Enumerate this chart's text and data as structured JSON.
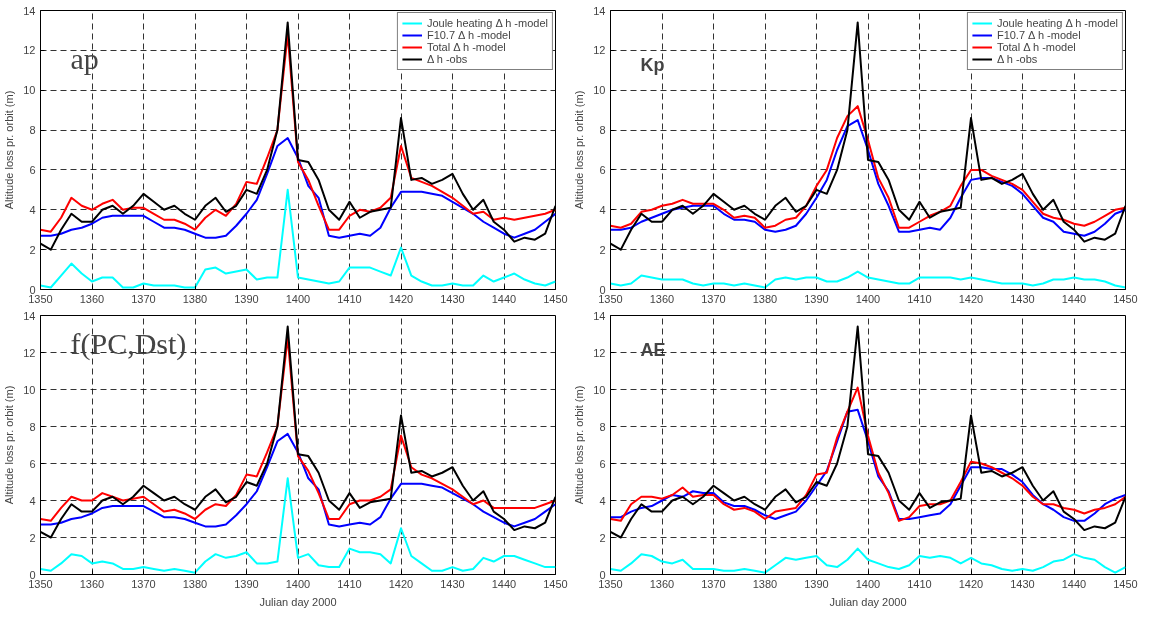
{
  "chart_data": [
    {
      "type": "line",
      "annotations": [
        "ap"
      ],
      "ylabel": "Altitude loss pr. orbit (m)",
      "xlim": [
        1350,
        1450
      ],
      "xticks": [
        1350,
        1360,
        1370,
        1380,
        1390,
        1400,
        1410,
        1420,
        1430,
        1440,
        1450
      ],
      "ylim": [
        0,
        14
      ],
      "yticks": [
        0,
        2,
        4,
        6,
        8,
        10,
        12,
        14
      ],
      "grid": true,
      "legend": "top right",
      "x": [
        1350,
        1352,
        1354,
        1356,
        1358,
        1360,
        1362,
        1364,
        1366,
        1368,
        1370,
        1372,
        1374,
        1376,
        1378,
        1380,
        1382,
        1384,
        1386,
        1388,
        1390,
        1392,
        1394,
        1396,
        1398,
        1400,
        1402,
        1404,
        1406,
        1408,
        1410,
        1412,
        1414,
        1416,
        1418,
        1420,
        1422,
        1424,
        1426,
        1428,
        1430,
        1432,
        1434,
        1436,
        1438,
        1440,
        1442,
        1444,
        1446,
        1448,
        1450
      ],
      "series": [
        {
          "name": "Joule heating Δ h -model",
          "color": "#00ffff",
          "values": [
            0.2,
            0.1,
            0.7,
            1.3,
            0.8,
            0.4,
            0.6,
            0.6,
            0.1,
            0.1,
            0.3,
            0.2,
            0.2,
            0.2,
            0.1,
            0.1,
            1.0,
            1.1,
            0.8,
            0.9,
            1.0,
            0.5,
            0.6,
            0.6,
            5.0,
            0.6,
            0.5,
            0.4,
            0.3,
            0.4,
            1.1,
            1.1,
            1.1,
            0.9,
            0.7,
            2.1,
            0.7,
            0.4,
            0.2,
            0.2,
            0.3,
            0.2,
            0.2,
            0.7,
            0.4,
            0.6,
            0.8,
            0.5,
            0.3,
            0.2,
            0.4
          ]
        },
        {
          "name": "F10.7 Δ h -model",
          "color": "#0000ff",
          "values": [
            2.7,
            2.7,
            2.8,
            3.0,
            3.1,
            3.3,
            3.6,
            3.7,
            3.7,
            3.7,
            3.7,
            3.4,
            3.1,
            3.1,
            3.0,
            2.8,
            2.6,
            2.6,
            2.7,
            3.2,
            3.8,
            4.5,
            5.8,
            7.2,
            7.6,
            6.6,
            5.2,
            4.6,
            2.7,
            2.6,
            2.7,
            2.8,
            2.7,
            3.1,
            4.1,
            4.9,
            4.9,
            4.9,
            4.8,
            4.7,
            4.4,
            4.1,
            3.8,
            3.4,
            3.1,
            2.8,
            2.6,
            2.8,
            3.0,
            3.4,
            3.8
          ]
        },
        {
          "name": "Total Δ h -model",
          "color": "#ff0000",
          "values": [
            3.0,
            2.9,
            3.6,
            4.6,
            4.2,
            4.0,
            4.3,
            4.5,
            4.0,
            4.1,
            4.1,
            3.8,
            3.5,
            3.5,
            3.3,
            3.0,
            3.6,
            4.0,
            3.7,
            4.3,
            5.4,
            5.3,
            6.6,
            8.0,
            12.8,
            6.4,
            5.5,
            4.2,
            3.0,
            3.0,
            3.7,
            4.0,
            3.9,
            4.1,
            4.6,
            7.2,
            5.6,
            5.4,
            5.2,
            4.9,
            4.6,
            4.2,
            3.8,
            3.9,
            3.5,
            3.6,
            3.5,
            3.6,
            3.7,
            3.8,
            4.0
          ]
        },
        {
          "name": "Δ h -obs",
          "color": "#000000",
          "values": [
            2.3,
            2.0,
            3.0,
            3.8,
            3.4,
            3.4,
            4.0,
            4.2,
            3.8,
            4.2,
            4.8,
            4.4,
            4.0,
            4.2,
            3.8,
            3.5,
            4.2,
            4.6,
            3.9,
            4.2,
            5.0,
            4.8,
            6.0,
            8.0,
            13.4,
            6.5,
            6.4,
            5.5,
            4.0,
            3.5,
            4.4,
            3.6,
            3.9,
            4.0,
            4.1,
            8.6,
            5.5,
            5.6,
            5.3,
            5.5,
            5.8,
            4.8,
            4.0,
            4.5,
            3.4,
            3.0,
            2.4,
            2.6,
            2.5,
            2.8,
            4.2
          ]
        }
      ]
    },
    {
      "type": "line",
      "annotations": [
        "Kp"
      ],
      "ylabel": "Altitude loss pr. orbit (m)",
      "xlim": [
        1350,
        1450
      ],
      "xticks": [
        1350,
        1360,
        1370,
        1380,
        1390,
        1400,
        1410,
        1420,
        1430,
        1440,
        1450
      ],
      "ylim": [
        0,
        14
      ],
      "yticks": [
        0,
        2,
        4,
        6,
        8,
        10,
        12,
        14
      ],
      "grid": true,
      "legend": "top right",
      "x": [
        1350,
        1352,
        1354,
        1356,
        1358,
        1360,
        1362,
        1364,
        1366,
        1368,
        1370,
        1372,
        1374,
        1376,
        1378,
        1380,
        1382,
        1384,
        1386,
        1388,
        1390,
        1392,
        1394,
        1396,
        1398,
        1400,
        1402,
        1404,
        1406,
        1408,
        1410,
        1412,
        1414,
        1416,
        1418,
        1420,
        1422,
        1424,
        1426,
        1428,
        1430,
        1432,
        1434,
        1436,
        1438,
        1440,
        1442,
        1444,
        1446,
        1448,
        1450
      ],
      "series": [
        {
          "name": "Joule heating Δ h -model",
          "color": "#00ffff",
          "values": [
            0.3,
            0.2,
            0.3,
            0.7,
            0.6,
            0.5,
            0.5,
            0.5,
            0.3,
            0.2,
            0.3,
            0.3,
            0.2,
            0.3,
            0.2,
            0.1,
            0.5,
            0.6,
            0.5,
            0.6,
            0.6,
            0.4,
            0.4,
            0.6,
            0.9,
            0.6,
            0.5,
            0.4,
            0.3,
            0.3,
            0.6,
            0.6,
            0.6,
            0.6,
            0.5,
            0.6,
            0.5,
            0.4,
            0.3,
            0.3,
            0.3,
            0.2,
            0.3,
            0.5,
            0.5,
            0.6,
            0.5,
            0.5,
            0.4,
            0.2,
            0.1
          ]
        },
        {
          "name": "F10.7 Δ h -model",
          "color": "#0000ff",
          "values": [
            3.0,
            3.0,
            3.1,
            3.4,
            3.6,
            3.8,
            4.0,
            4.1,
            4.2,
            4.2,
            4.2,
            3.8,
            3.5,
            3.5,
            3.4,
            3.0,
            2.9,
            3.0,
            3.2,
            3.8,
            4.6,
            5.5,
            7.0,
            8.2,
            8.5,
            7.0,
            5.3,
            4.2,
            2.9,
            2.9,
            3.0,
            3.1,
            3.0,
            3.6,
            4.6,
            5.5,
            5.6,
            5.6,
            5.4,
            5.2,
            4.8,
            4.2,
            3.6,
            3.4,
            2.9,
            2.8,
            2.7,
            2.9,
            3.3,
            3.8,
            4.0
          ]
        },
        {
          "name": "Total Δ h -model",
          "color": "#ff0000",
          "values": [
            3.2,
            3.1,
            3.3,
            3.9,
            4.0,
            4.2,
            4.3,
            4.5,
            4.3,
            4.3,
            4.3,
            4.0,
            3.6,
            3.7,
            3.6,
            3.1,
            3.2,
            3.5,
            3.6,
            4.2,
            5.2,
            6.0,
            7.6,
            8.7,
            9.2,
            7.5,
            5.6,
            4.6,
            3.1,
            3.1,
            3.4,
            3.7,
            3.9,
            4.2,
            5.2,
            6.0,
            6.0,
            5.7,
            5.5,
            5.3,
            5.0,
            4.4,
            3.8,
            3.6,
            3.5,
            3.3,
            3.2,
            3.4,
            3.7,
            4.0,
            4.1
          ]
        },
        {
          "name": "Δ h -obs",
          "color": "#000000",
          "values": [
            2.3,
            2.0,
            3.0,
            3.8,
            3.4,
            3.4,
            4.0,
            4.2,
            3.8,
            4.2,
            4.8,
            4.4,
            4.0,
            4.2,
            3.8,
            3.5,
            4.2,
            4.6,
            3.9,
            4.2,
            5.0,
            4.8,
            6.0,
            8.0,
            13.4,
            6.5,
            6.4,
            5.5,
            4.0,
            3.5,
            4.4,
            3.6,
            3.9,
            4.0,
            4.1,
            8.6,
            5.5,
            5.6,
            5.3,
            5.5,
            5.8,
            4.8,
            4.0,
            4.5,
            3.4,
            3.0,
            2.4,
            2.6,
            2.5,
            2.8,
            4.2
          ]
        }
      ]
    },
    {
      "type": "line",
      "annotations": [
        "f(PC,Dst)"
      ],
      "xlabel": "Julian day 2000",
      "ylabel": "Altitude loss pr. orbit (m)",
      "xlim": [
        1350,
        1450
      ],
      "xticks": [
        1350,
        1360,
        1370,
        1380,
        1390,
        1400,
        1410,
        1420,
        1430,
        1440,
        1450
      ],
      "ylim": [
        0,
        14
      ],
      "yticks": [
        0,
        2,
        4,
        6,
        8,
        10,
        12,
        14
      ],
      "grid": true,
      "x": [
        1350,
        1352,
        1354,
        1356,
        1358,
        1360,
        1362,
        1364,
        1366,
        1368,
        1370,
        1372,
        1374,
        1376,
        1378,
        1380,
        1382,
        1384,
        1386,
        1388,
        1390,
        1392,
        1394,
        1396,
        1398,
        1400,
        1402,
        1404,
        1406,
        1408,
        1410,
        1412,
        1414,
        1416,
        1418,
        1420,
        1422,
        1424,
        1426,
        1428,
        1430,
        1432,
        1434,
        1436,
        1438,
        1440,
        1442,
        1444,
        1446,
        1448,
        1450
      ],
      "series": [
        {
          "color": "#00ffff",
          "values": [
            0.3,
            0.2,
            0.6,
            1.1,
            1.0,
            0.6,
            0.7,
            0.6,
            0.3,
            0.3,
            0.4,
            0.3,
            0.2,
            0.3,
            0.2,
            0.1,
            0.7,
            1.1,
            0.9,
            1.0,
            1.2,
            0.6,
            0.6,
            0.7,
            5.2,
            0.9,
            1.1,
            0.5,
            0.4,
            0.4,
            1.4,
            1.2,
            1.2,
            1.1,
            0.6,
            2.5,
            1.0,
            0.6,
            0.2,
            0.2,
            0.4,
            0.2,
            0.3,
            0.9,
            0.7,
            1.0,
            1.0,
            0.8,
            0.6,
            0.4,
            0.4
          ]
        },
        {
          "color": "#0000ff",
          "values": [
            2.7,
            2.7,
            2.8,
            3.0,
            3.1,
            3.3,
            3.6,
            3.7,
            3.7,
            3.7,
            3.7,
            3.4,
            3.1,
            3.1,
            3.0,
            2.8,
            2.6,
            2.6,
            2.7,
            3.2,
            3.8,
            4.5,
            5.8,
            7.2,
            7.6,
            6.6,
            5.2,
            4.6,
            2.7,
            2.6,
            2.7,
            2.8,
            2.7,
            3.1,
            4.1,
            4.9,
            4.9,
            4.9,
            4.8,
            4.7,
            4.4,
            4.1,
            3.8,
            3.4,
            3.1,
            2.8,
            2.6,
            2.8,
            3.0,
            3.4,
            3.8
          ]
        },
        {
          "color": "#ff0000",
          "values": [
            3.0,
            2.9,
            3.6,
            4.2,
            4.0,
            4.0,
            4.4,
            4.2,
            4.0,
            4.1,
            4.2,
            3.8,
            3.4,
            3.5,
            3.3,
            3.0,
            3.5,
            3.8,
            3.7,
            4.3,
            5.4,
            5.3,
            6.6,
            8.0,
            12.8,
            6.4,
            5.6,
            4.4,
            3.0,
            3.0,
            3.8,
            4.0,
            4.0,
            4.2,
            4.6,
            7.5,
            5.8,
            5.4,
            5.2,
            4.9,
            4.6,
            4.2,
            3.8,
            4.0,
            3.6,
            3.6,
            3.6,
            3.6,
            3.6,
            3.8,
            4.0
          ]
        },
        {
          "color": "#000000",
          "values": [
            2.3,
            2.0,
            3.0,
            3.8,
            3.4,
            3.4,
            4.0,
            4.2,
            3.8,
            4.2,
            4.8,
            4.4,
            4.0,
            4.2,
            3.8,
            3.5,
            4.2,
            4.6,
            3.9,
            4.2,
            5.0,
            4.8,
            6.0,
            8.0,
            13.4,
            6.5,
            6.4,
            5.5,
            4.0,
            3.5,
            4.4,
            3.6,
            3.9,
            4.0,
            4.1,
            8.6,
            5.5,
            5.6,
            5.3,
            5.5,
            5.8,
            4.8,
            4.0,
            4.5,
            3.4,
            3.0,
            2.4,
            2.6,
            2.5,
            2.8,
            4.2
          ]
        }
      ]
    },
    {
      "type": "line",
      "annotations": [
        "AE"
      ],
      "xlabel": "Julian day 2000",
      "ylabel": "Altitude loss pr. orbit (m)",
      "xlim": [
        1350,
        1450
      ],
      "xticks": [
        1350,
        1360,
        1370,
        1380,
        1390,
        1400,
        1410,
        1420,
        1430,
        1440,
        1450
      ],
      "ylim": [
        0,
        14
      ],
      "yticks": [
        0,
        2,
        4,
        6,
        8,
        10,
        12,
        14
      ],
      "grid": true,
      "x": [
        1350,
        1352,
        1354,
        1356,
        1358,
        1360,
        1362,
        1364,
        1366,
        1368,
        1370,
        1372,
        1374,
        1376,
        1378,
        1380,
        1382,
        1384,
        1386,
        1388,
        1390,
        1392,
        1394,
        1396,
        1398,
        1400,
        1402,
        1404,
        1406,
        1408,
        1410,
        1412,
        1414,
        1416,
        1418,
        1420,
        1422,
        1424,
        1426,
        1428,
        1430,
        1432,
        1434,
        1436,
        1438,
        1440,
        1442,
        1444,
        1446,
        1448,
        1450
      ],
      "series": [
        {
          "color": "#00ffff",
          "values": [
            0.3,
            0.2,
            0.6,
            1.1,
            1.0,
            0.7,
            0.6,
            0.8,
            0.3,
            0.3,
            0.3,
            0.2,
            0.2,
            0.3,
            0.2,
            0.1,
            0.5,
            0.9,
            0.8,
            0.9,
            1.0,
            0.5,
            0.4,
            0.8,
            1.4,
            0.8,
            0.6,
            0.4,
            0.3,
            0.5,
            1.0,
            0.9,
            1.0,
            0.9,
            0.6,
            0.9,
            0.6,
            0.5,
            0.3,
            0.2,
            0.3,
            0.2,
            0.4,
            0.7,
            0.8,
            1.1,
            0.9,
            0.8,
            0.4,
            0.1,
            0.4
          ]
        },
        {
          "color": "#0000ff",
          "values": [
            3.1,
            3.1,
            3.4,
            3.6,
            3.7,
            4.0,
            4.3,
            4.2,
            4.5,
            4.4,
            4.4,
            3.9,
            3.7,
            3.7,
            3.5,
            3.2,
            3.0,
            3.2,
            3.4,
            4.0,
            4.8,
            5.6,
            7.2,
            8.8,
            8.9,
            7.2,
            5.3,
            4.5,
            3.0,
            3.0,
            3.1,
            3.2,
            3.3,
            3.8,
            4.8,
            5.8,
            5.8,
            5.7,
            5.7,
            5.4,
            5.0,
            4.3,
            3.8,
            3.5,
            3.1,
            2.9,
            2.9,
            3.3,
            3.8,
            4.1,
            4.3
          ]
        },
        {
          "color": "#ff0000",
          "values": [
            3.0,
            2.9,
            3.8,
            4.2,
            4.2,
            4.1,
            4.3,
            4.7,
            4.2,
            4.3,
            4.3,
            3.8,
            3.5,
            3.6,
            3.4,
            3.0,
            3.4,
            3.5,
            3.6,
            4.3,
            5.4,
            5.5,
            7.4,
            8.8,
            10.1,
            7.5,
            5.5,
            4.4,
            2.9,
            3.1,
            3.7,
            3.8,
            3.8,
            4.0,
            5.0,
            6.1,
            6.0,
            5.8,
            5.5,
            5.2,
            4.8,
            4.2,
            3.8,
            3.8,
            3.6,
            3.5,
            3.3,
            3.5,
            3.6,
            3.8,
            4.2
          ]
        },
        {
          "color": "#000000",
          "values": [
            2.3,
            2.0,
            3.0,
            3.8,
            3.4,
            3.4,
            4.0,
            4.2,
            3.8,
            4.2,
            4.8,
            4.4,
            4.0,
            4.2,
            3.8,
            3.5,
            4.2,
            4.6,
            3.9,
            4.2,
            5.0,
            4.8,
            6.0,
            8.0,
            13.4,
            6.5,
            6.4,
            5.5,
            4.0,
            3.5,
            4.4,
            3.6,
            3.9,
            4.0,
            4.1,
            8.6,
            5.5,
            5.6,
            5.3,
            5.5,
            5.8,
            4.8,
            4.0,
            4.5,
            3.4,
            3.0,
            2.4,
            2.6,
            2.5,
            2.8,
            4.2
          ]
        }
      ]
    }
  ]
}
